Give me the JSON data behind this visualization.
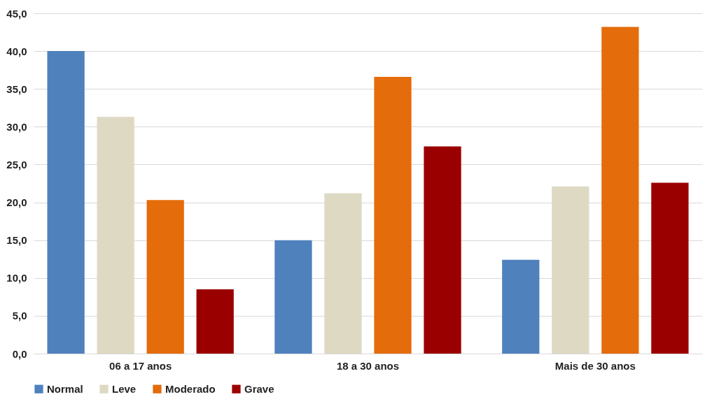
{
  "chart_data": {
    "type": "bar",
    "categories": [
      "06 a 17 anos",
      "18 a 30 anos",
      "Mais de 30 anos"
    ],
    "series": [
      {
        "name": "Normal",
        "color": "#4f81bd",
        "values": [
          40.0,
          15.0,
          12.4
        ]
      },
      {
        "name": "Leve",
        "color": "#ddd9c3",
        "values": [
          31.3,
          21.2,
          22.1
        ]
      },
      {
        "name": "Moderado",
        "color": "#e46c0a",
        "values": [
          20.3,
          36.6,
          43.2
        ]
      },
      {
        "name": "Grave",
        "color": "#9b0000",
        "values": [
          8.5,
          27.4,
          22.6
        ]
      }
    ],
    "ylim": [
      0,
      45
    ],
    "yticks": [
      {
        "value": 0,
        "label": "0,0"
      },
      {
        "value": 5,
        "label": "5,0"
      },
      {
        "value": 10,
        "label": "10,0"
      },
      {
        "value": 15,
        "label": "15,0"
      },
      {
        "value": 20,
        "label": "20,0"
      },
      {
        "value": 25,
        "label": "25,0"
      },
      {
        "value": 30,
        "label": "30,0"
      },
      {
        "value": 35,
        "label": "35,0"
      },
      {
        "value": 40,
        "label": "40,0"
      },
      {
        "value": 45,
        "label": "45,0"
      }
    ],
    "grid": "y",
    "legend": "bottom"
  }
}
